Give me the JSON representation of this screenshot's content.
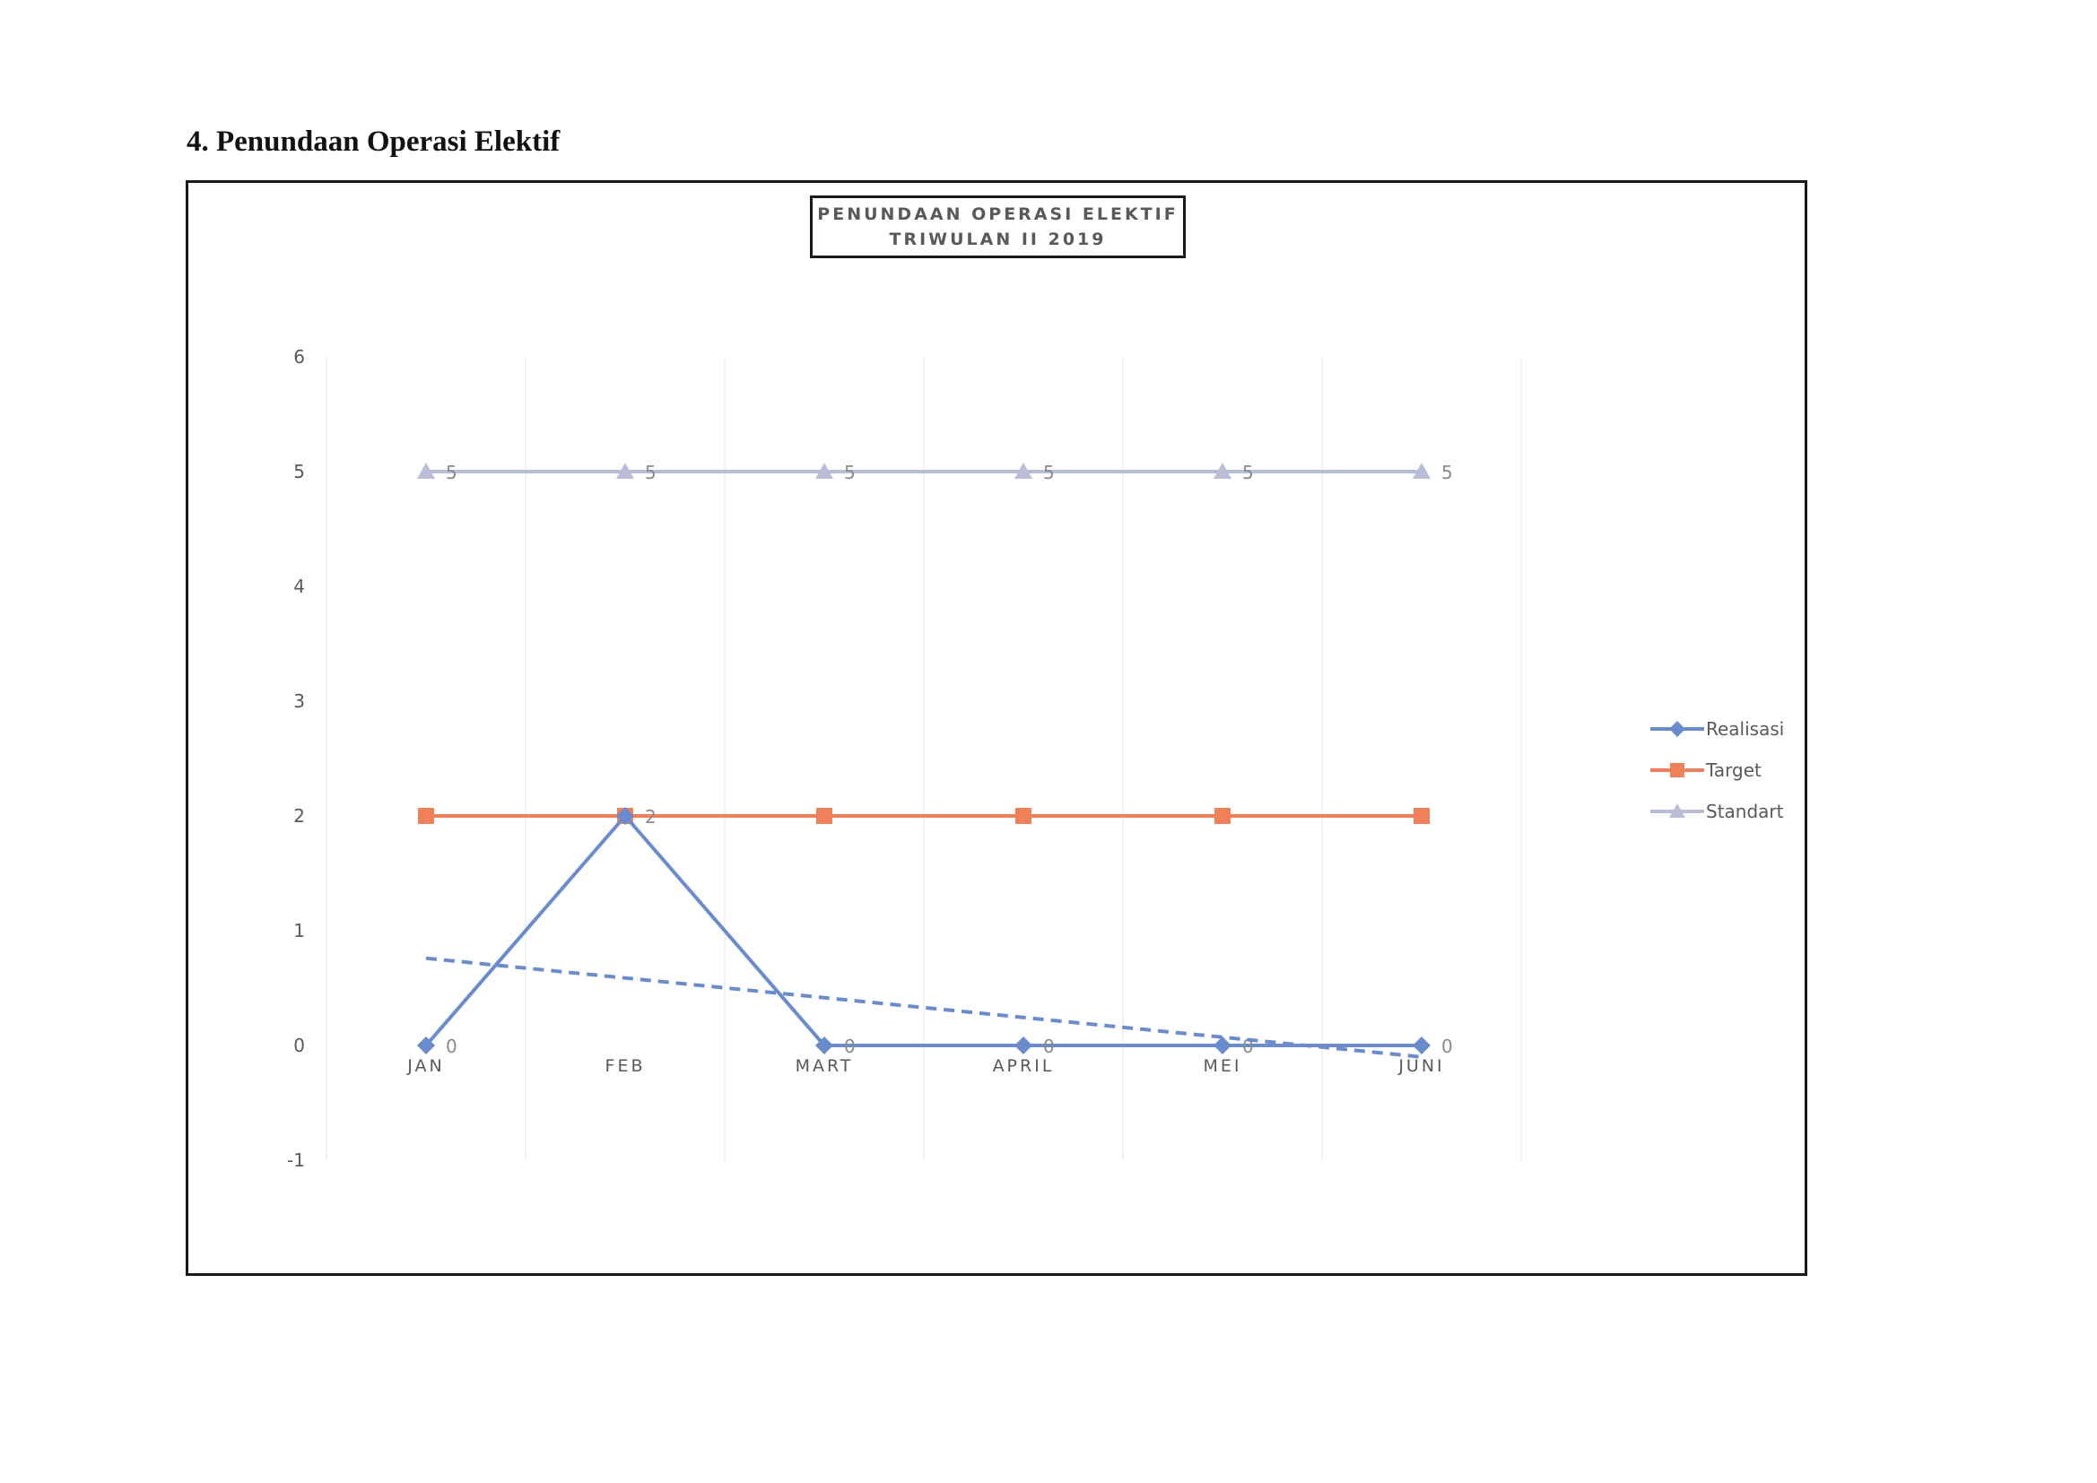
{
  "heading": "4. Penundaan Operasi Elektif",
  "chart_data": {
    "type": "line",
    "title_line1": "PENUNDAAN OPERASI ELEKTIF",
    "title_line2": "TRIWULAN II 2019",
    "categories": [
      "JAN",
      "FEB",
      "MART",
      "APRIL",
      "MEI",
      "JUNI"
    ],
    "ylim": [
      -1,
      6
    ],
    "yticks": [
      -1,
      0,
      1,
      2,
      3,
      4,
      5,
      6
    ],
    "grid": "vertical",
    "legend_position": "right",
    "series": [
      {
        "name": "Realisasi",
        "values": [
          0,
          2,
          0,
          0,
          0,
          0
        ],
        "color": "#6a8ccc",
        "marker": "diamond",
        "data_labels": true
      },
      {
        "name": "Target",
        "values": [
          2,
          2,
          2,
          2,
          2,
          2
        ],
        "color": "#f0805a",
        "marker": "square",
        "data_labels": false
      },
      {
        "name": "Standart",
        "values": [
          5,
          5,
          5,
          5,
          5,
          5
        ],
        "color": "#b9bdd6",
        "marker": "triangle",
        "data_labels": true
      }
    ],
    "trendline": {
      "series": "Realisasi",
      "style": "dashed",
      "start": 0.76,
      "end": -0.1,
      "color": "#6a8ccc"
    }
  }
}
